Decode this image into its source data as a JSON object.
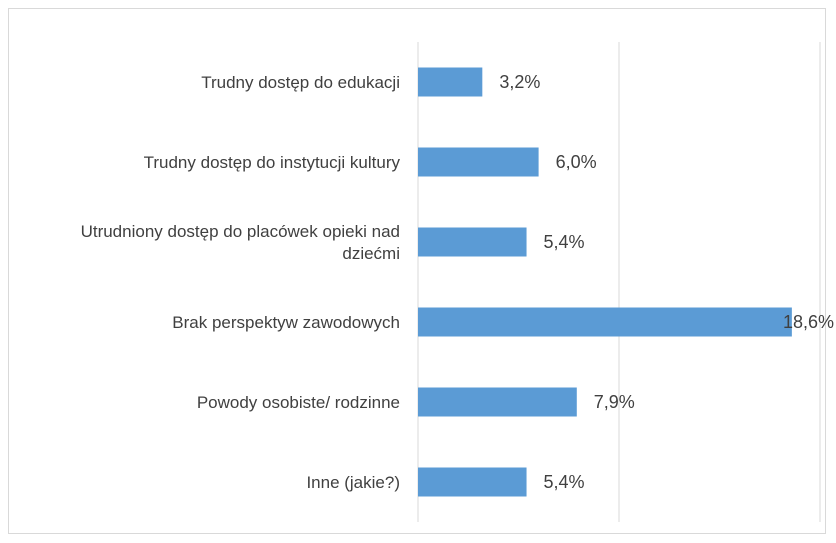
{
  "chart_data": {
    "type": "bar",
    "orientation": "horizontal",
    "categories": [
      "Trudny dostęp do edukacji",
      "Trudny dostęp do instytucji kultury",
      "Utrudniony dostęp do placówek opieki nad dziećmi",
      "Brak perspektyw zawodowych",
      "Powody osobiste/ rodzinne",
      "Inne (jakie?)"
    ],
    "category_lines": [
      [
        "Trudny dostęp do edukacji"
      ],
      [
        "Trudny dostęp do instytucji kultury"
      ],
      [
        "Utrudniony dostęp do placówek opieki nad",
        "dziećmi"
      ],
      [
        "Brak perspektyw zawodowych"
      ],
      [
        "Powody osobiste/ rodzinne"
      ],
      [
        "Inne (jakie?)"
      ]
    ],
    "values": [
      3.2,
      6.0,
      5.4,
      18.6,
      7.9,
      5.4
    ],
    "data_labels": [
      "3,2%",
      "6,0%",
      "5,4%",
      "18,6%",
      "7,9%",
      "5,4%"
    ],
    "xlim": [
      0,
      20
    ],
    "x_unit": "%",
    "gridlines": [
      0,
      10,
      20
    ],
    "grid": true,
    "bar_color": "#5b9bd5",
    "grid_color": "#d9d9d9",
    "text_color": "#404040",
    "title": "",
    "xlabel": "",
    "ylabel": ""
  }
}
